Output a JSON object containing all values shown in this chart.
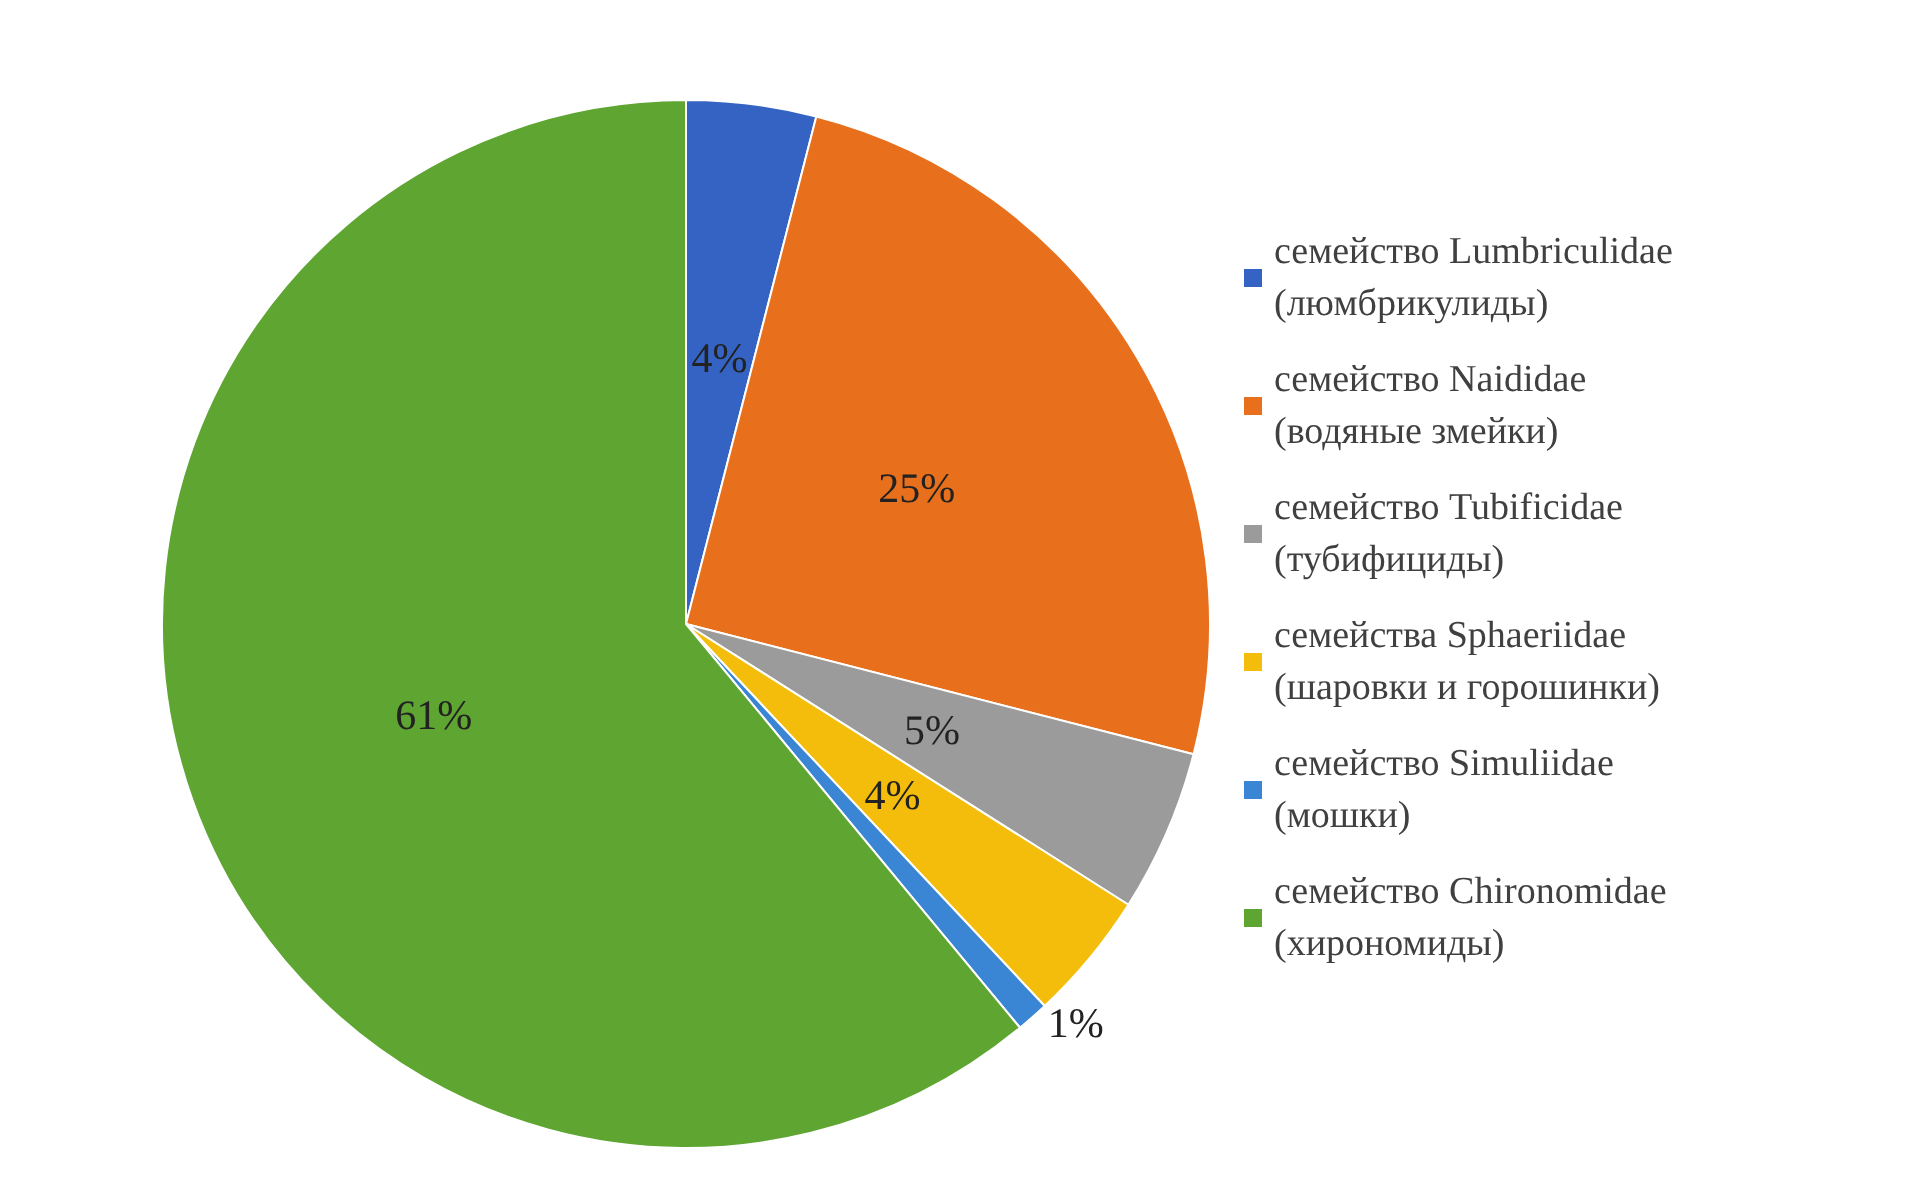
{
  "chart_data": {
    "type": "pie",
    "categories": [
      "семейство Lumbriculidae\n(люмбрикулиды)",
      "семейство Naididae\n(водяные змейки)",
      "семейство Tubificidae\n(тубифициды)",
      "семейства Sphaeriidae\n(шаровки и горошинки)",
      "семейство Simuliidae\n(мошки)",
      "семейство Chironomidae\n(хирономиды)"
    ],
    "values": [
      4,
      25,
      5,
      4,
      1,
      61
    ],
    "colors": [
      "#3563c4",
      "#e8701c",
      "#9b9b9b",
      "#f4bd0c",
      "#3a85d4",
      "#5ea532"
    ],
    "value_labels": [
      "4%",
      "25%",
      "5%",
      "4%",
      "1%",
      "61%"
    ],
    "legend": "right"
  }
}
